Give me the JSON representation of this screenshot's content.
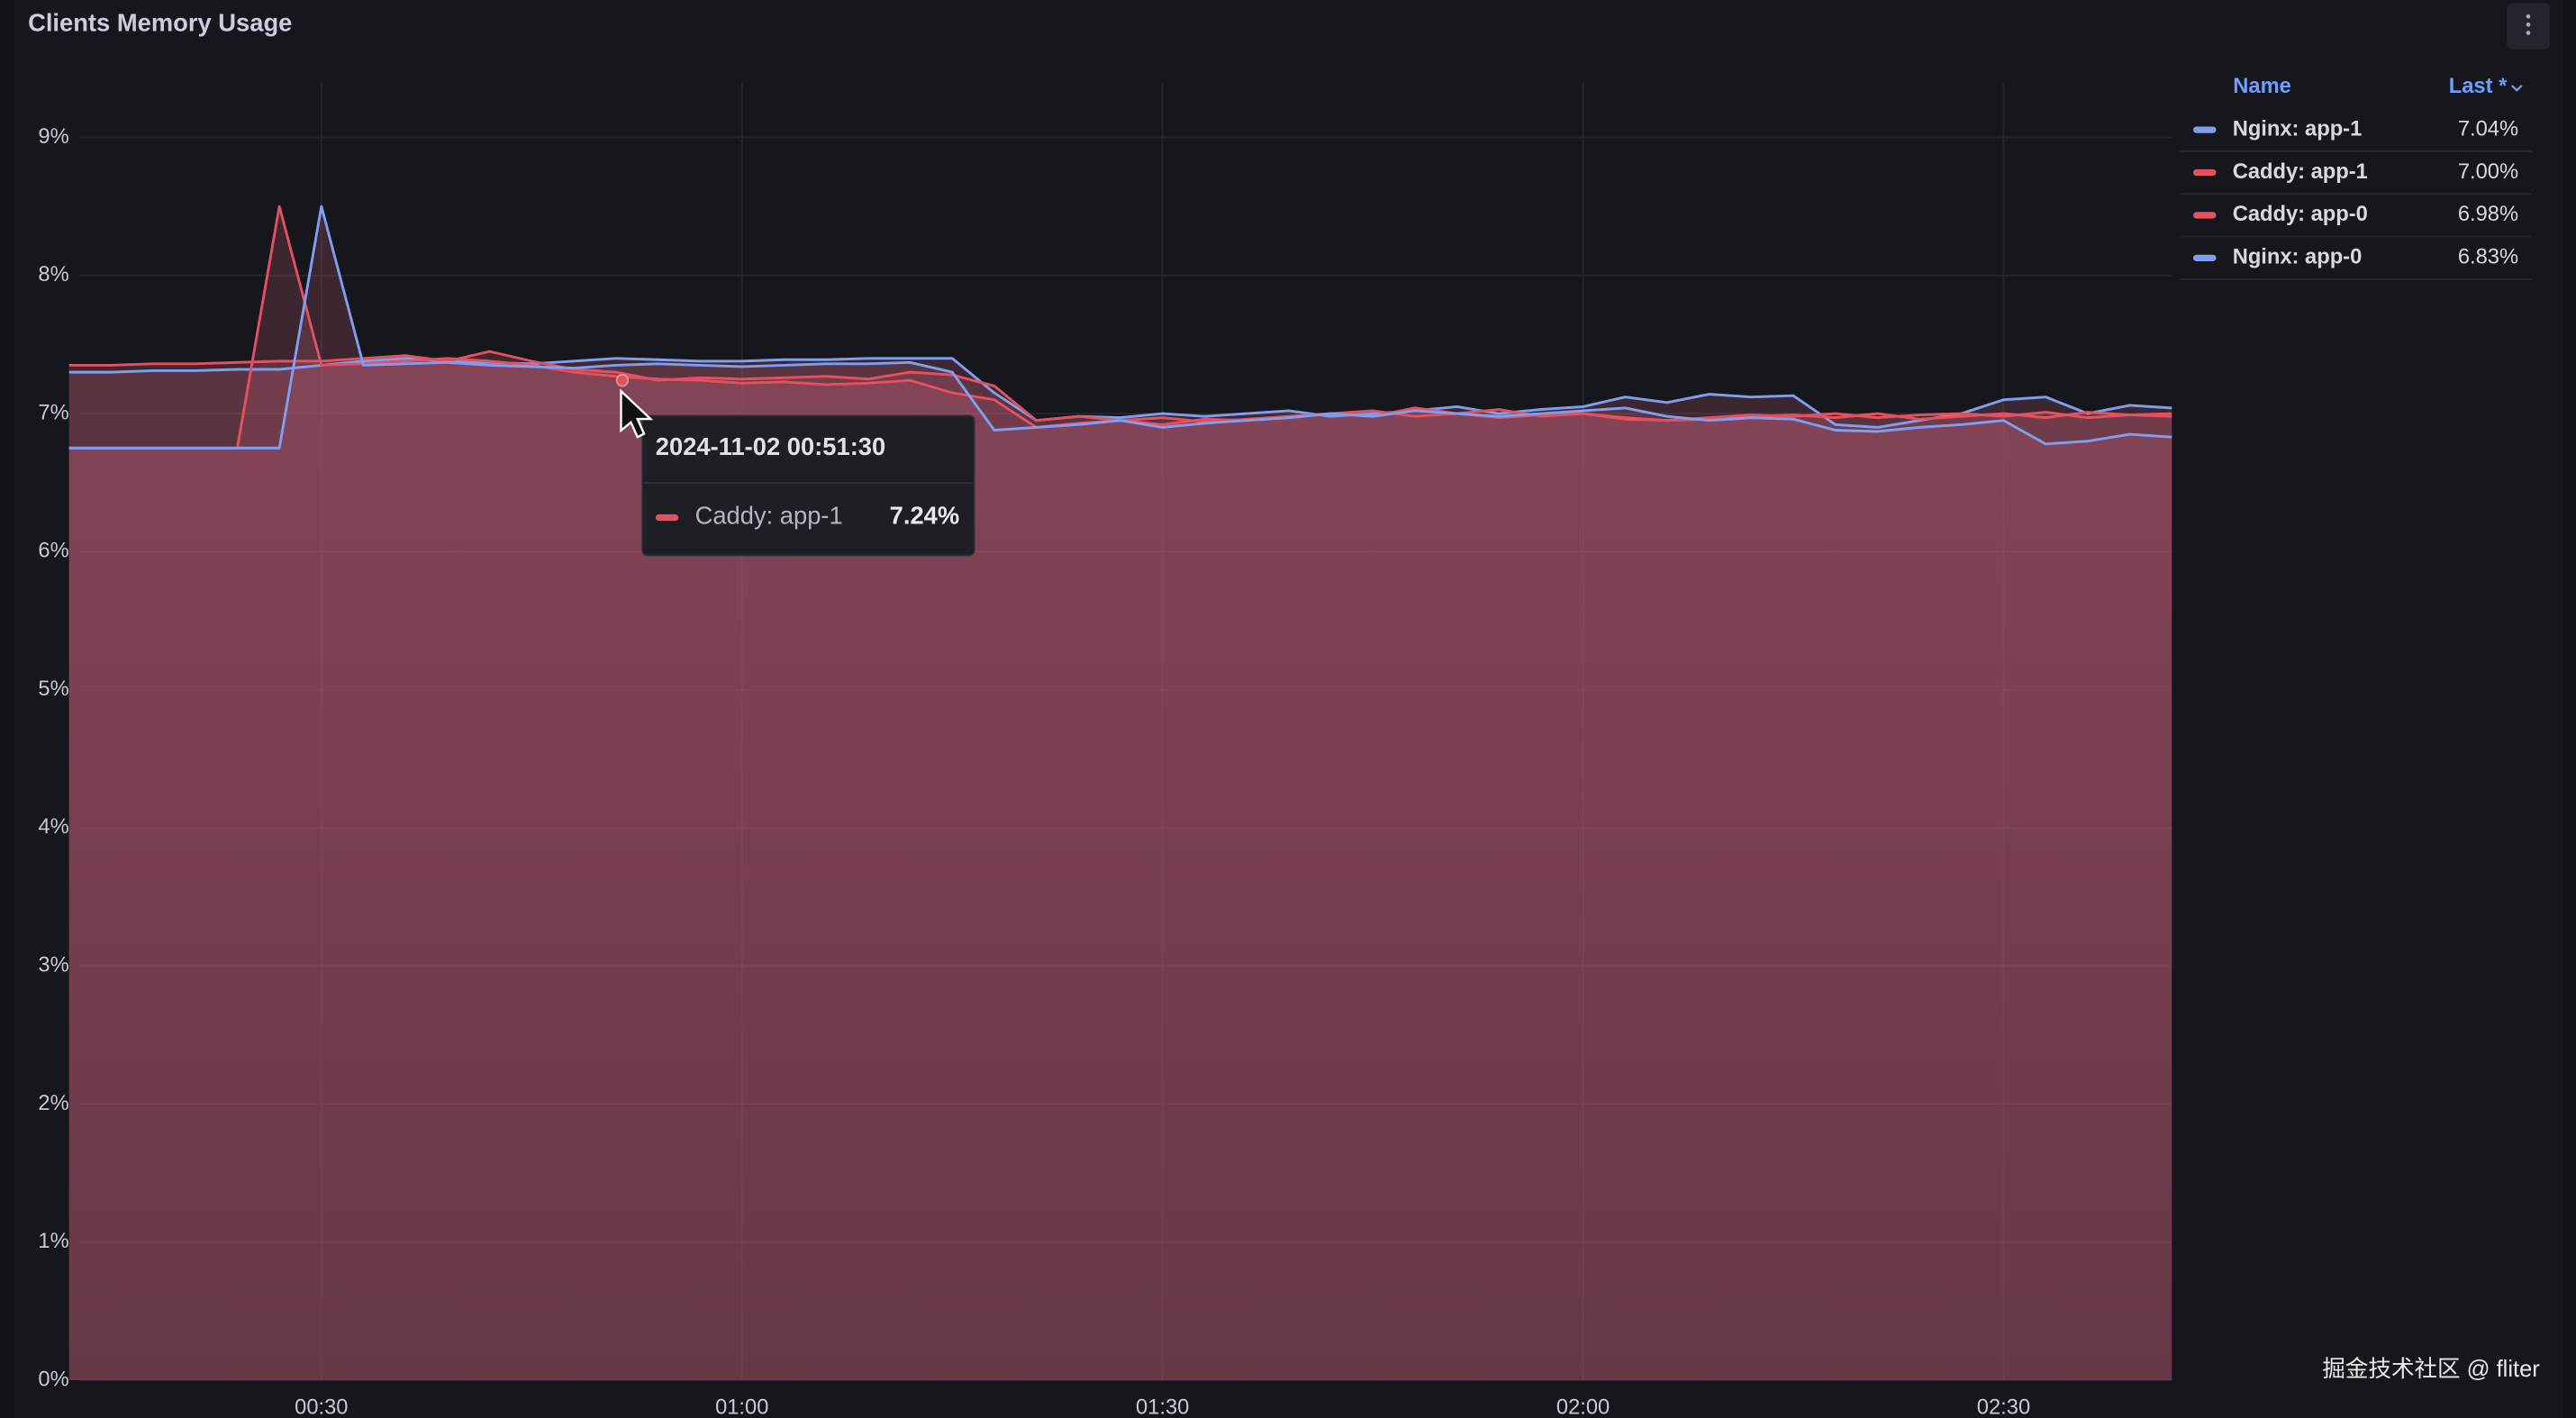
{
  "chart_data": {
    "type": "line",
    "title": "Clients Memory Usage",
    "x": [
      "00:12",
      "00:15",
      "00:18",
      "00:21",
      "00:24",
      "00:27",
      "00:30",
      "00:33",
      "00:36",
      "00:39",
      "00:42",
      "00:45",
      "00:48",
      "00:51",
      "00:54",
      "00:57",
      "01:00",
      "01:03",
      "01:06",
      "01:09",
      "01:12",
      "01:15",
      "01:18",
      "01:21",
      "01:24",
      "01:27",
      "01:30",
      "01:33",
      "01:36",
      "01:39",
      "01:42",
      "01:45",
      "01:48",
      "01:51",
      "01:54",
      "01:57",
      "02:00",
      "02:03",
      "02:06",
      "02:09",
      "02:12",
      "02:15",
      "02:18",
      "02:21",
      "02:24",
      "02:27",
      "02:30",
      "02:33",
      "02:36",
      "02:39",
      "02:42"
    ],
    "xlim": [
      "00:12",
      "02:42"
    ],
    "xticks": [
      "00:30",
      "01:00",
      "01:30",
      "02:00",
      "02:30"
    ],
    "ylim": [
      0,
      9.4
    ],
    "yticks": [
      {
        "value": 0,
        "label": "0%"
      },
      {
        "value": 1,
        "label": "1%"
      },
      {
        "value": 2,
        "label": "2%"
      },
      {
        "value": 3,
        "label": "3%"
      },
      {
        "value": 4,
        "label": "4%"
      },
      {
        "value": 5,
        "label": "5%"
      },
      {
        "value": 6,
        "label": "6%"
      },
      {
        "value": 7,
        "label": "7%"
      },
      {
        "value": 8,
        "label": "8%"
      },
      {
        "value": 9,
        "label": "9%"
      }
    ],
    "grid": true,
    "legend": "right",
    "legend_header": {
      "name": "Name",
      "last": "Last *"
    },
    "series": [
      {
        "name": "Nginx: app-1",
        "color": "#7f9ef0",
        "last_label": "7.04%",
        "values": [
          7.3,
          7.3,
          7.31,
          7.31,
          7.32,
          7.32,
          7.35,
          7.38,
          7.4,
          7.38,
          7.37,
          7.36,
          7.38,
          7.4,
          7.39,
          7.38,
          7.38,
          7.39,
          7.39,
          7.4,
          7.4,
          7.4,
          7.15,
          6.95,
          6.98,
          6.97,
          7.0,
          6.98,
          7.0,
          7.02,
          6.98,
          7.0,
          7.02,
          7.05,
          7.0,
          7.03,
          7.05,
          7.12,
          7.08,
          7.14,
          7.12,
          7.13,
          6.92,
          6.9,
          6.95,
          7.0,
          7.1,
          7.12,
          7.0,
          7.06,
          7.04
        ]
      },
      {
        "name": "Caddy: app-1",
        "color": "#e5505f",
        "last_label": "7.00%",
        "values": [
          7.35,
          7.35,
          7.36,
          7.36,
          7.37,
          7.38,
          7.38,
          7.4,
          7.42,
          7.38,
          7.45,
          7.38,
          7.32,
          7.3,
          7.24,
          7.26,
          7.25,
          7.26,
          7.27,
          7.25,
          7.3,
          7.28,
          7.2,
          6.95,
          6.98,
          6.95,
          6.97,
          6.94,
          6.96,
          6.98,
          7.0,
          7.02,
          6.98,
          7.0,
          7.03,
          6.98,
          7.0,
          6.96,
          6.95,
          6.97,
          6.99,
          6.98,
          7.0,
          6.97,
          6.99,
          7.0,
          6.98,
          7.01,
          6.97,
          6.99,
          7.0
        ]
      },
      {
        "name": "Caddy: app-0",
        "color": "#e5505f",
        "last_label": "6.98%",
        "values": [
          6.75,
          6.75,
          6.75,
          6.75,
          6.75,
          8.5,
          7.35,
          7.36,
          7.38,
          7.4,
          7.38,
          7.35,
          7.3,
          7.27,
          7.25,
          7.24,
          7.22,
          7.23,
          7.21,
          7.22,
          7.24,
          7.15,
          7.1,
          6.9,
          6.93,
          6.95,
          6.92,
          6.96,
          6.95,
          6.97,
          7.0,
          6.98,
          7.04,
          7.0,
          6.97,
          6.99,
          7.0,
          6.97,
          6.95,
          6.96,
          6.98,
          6.99,
          6.97,
          7.0,
          6.96,
          6.98,
          7.0,
          6.97,
          7.01,
          6.99,
          6.98
        ]
      },
      {
        "name": "Nginx: app-0",
        "color": "#7f9ef0",
        "last_label": "6.83%",
        "values": [
          6.75,
          6.75,
          6.75,
          6.75,
          6.75,
          6.75,
          8.5,
          7.35,
          7.36,
          7.37,
          7.35,
          7.34,
          7.33,
          7.35,
          7.36,
          7.35,
          7.34,
          7.35,
          7.36,
          7.36,
          7.37,
          7.3,
          6.88,
          6.9,
          6.92,
          6.95,
          6.9,
          6.93,
          6.95,
          6.97,
          7.0,
          6.98,
          7.02,
          7.0,
          6.98,
          7.0,
          7.02,
          7.04,
          6.98,
          6.95,
          6.97,
          6.96,
          6.88,
          6.87,
          6.9,
          6.92,
          6.95,
          6.78,
          6.8,
          6.85,
          6.83
        ]
      }
    ],
    "tooltip": {
      "time": "2024-11-02 00:51:30",
      "series": 1,
      "value": 7.24,
      "value_label": "7.24%"
    },
    "watermark": "掘金技术社区 @ fliter"
  }
}
